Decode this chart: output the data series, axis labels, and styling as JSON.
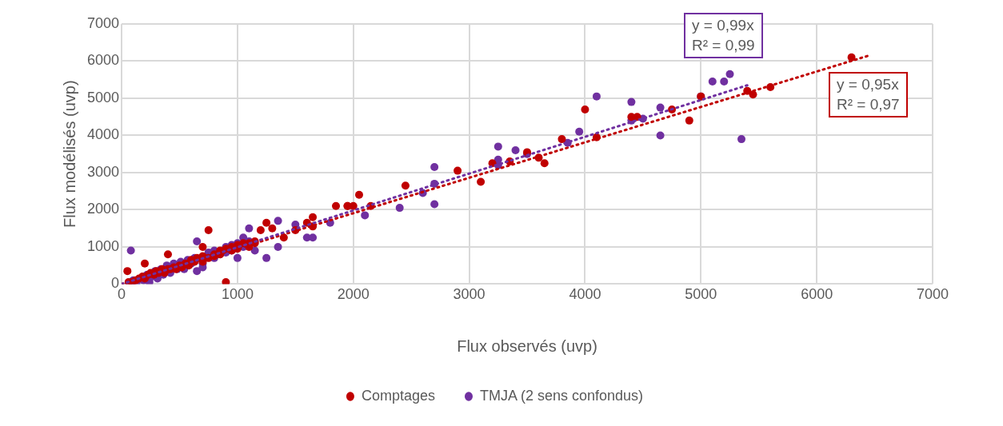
{
  "chart_data": {
    "type": "scatter",
    "xlabel": "Flux observés (uvp)",
    "ylabel": "Flux modélisés (uvp)",
    "xlim": [
      0,
      7000
    ],
    "xticks": [
      0,
      1000,
      2000,
      3000,
      4000,
      5000,
      6000,
      7000
    ],
    "ylim": [
      0,
      7000
    ],
    "yticks": [
      0,
      1000,
      2000,
      3000,
      4000,
      5000,
      6000,
      7000
    ],
    "grid": true,
    "legend": "bottom",
    "marker": "circle",
    "series": [
      {
        "name": "Comptages",
        "color": "#c00000",
        "x": [
          50,
          60,
          90,
          120,
          150,
          180,
          200,
          200,
          230,
          250,
          280,
          300,
          320,
          350,
          370,
          400,
          400,
          420,
          450,
          470,
          500,
          520,
          550,
          580,
          600,
          630,
          650,
          700,
          700,
          700,
          750,
          750,
          800,
          800,
          850,
          850,
          900,
          900,
          950,
          950,
          1000,
          1000,
          1050,
          1100,
          1100,
          1150,
          1150,
          1200,
          1250,
          1300,
          1400,
          1500,
          1600,
          1650,
          1650,
          1850,
          1950,
          1950,
          2000,
          2050,
          2150,
          2450,
          2900,
          3100,
          3200,
          3350,
          3500,
          3600,
          3650,
          3800,
          4000,
          4100,
          4400,
          4450,
          4750,
          4900,
          5000,
          5400,
          5450,
          5600,
          6300
        ],
        "values": [
          350,
          50,
          50,
          100,
          150,
          200,
          150,
          550,
          250,
          300,
          250,
          350,
          300,
          400,
          300,
          800,
          400,
          400,
          450,
          400,
          500,
          450,
          550,
          500,
          650,
          600,
          700,
          600,
          750,
          1000,
          700,
          1450,
          800,
          750,
          900,
          800,
          50,
          950,
          1000,
          900,
          1050,
          950,
          1100,
          1000,
          1100,
          1100,
          1150,
          1450,
          1650,
          1500,
          1250,
          1450,
          1650,
          1800,
          1550,
          2100,
          2100,
          2100,
          2100,
          2400,
          2100,
          2650,
          3050,
          2750,
          3250,
          3300,
          3550,
          3400,
          3250,
          3900,
          4700,
          3950,
          4500,
          4500,
          4700,
          4400,
          5050,
          5200,
          5100,
          5300,
          6100
        ]
      },
      {
        "name": "TMJA (2 sens confondus)",
        "color": "#7030a0",
        "x": [
          70,
          80,
          100,
          130,
          190,
          220,
          240,
          260,
          290,
          310,
          340,
          360,
          390,
          420,
          450,
          480,
          510,
          540,
          570,
          600,
          630,
          650,
          650,
          700,
          700,
          750,
          800,
          800,
          850,
          900,
          900,
          950,
          950,
          1000,
          1000,
          1050,
          1050,
          1100,
          1100,
          1150,
          1250,
          1350,
          1350,
          1500,
          1600,
          1650,
          1800,
          2100,
          2400,
          2600,
          2700,
          2700,
          2700,
          3250,
          3250,
          3250,
          3400,
          3500,
          3850,
          3950,
          4100,
          4400,
          4400,
          4500,
          4650,
          4650,
          5000,
          5100,
          5200,
          5250,
          5350
        ],
        "values": [
          0,
          900,
          100,
          50,
          100,
          250,
          50,
          200,
          350,
          150,
          400,
          250,
          500,
          300,
          550,
          400,
          600,
          400,
          650,
          550,
          700,
          1150,
          350,
          450,
          550,
          850,
          700,
          900,
          800,
          1000,
          850,
          1050,
          900,
          1100,
          700,
          1250,
          1000,
          1150,
          1500,
          900,
          700,
          1000,
          1700,
          1600,
          1250,
          1250,
          1650,
          1850,
          2050,
          2450,
          2150,
          2700,
          3150,
          3200,
          3350,
          3700,
          3600,
          3500,
          3800,
          4100,
          5050,
          4900,
          4400,
          4450,
          4750,
          4000,
          5050,
          5450,
          5450,
          5650,
          3900
        ]
      },
      {
        "type": "line",
        "color": "#7030a0",
        "line_style": "dotted",
        "marker": "none",
        "x": [
          0,
          5400
        ],
        "values": [
          0,
          5350
        ]
      },
      {
        "type": "line",
        "color": "#c00000",
        "line_style": "dotted",
        "marker": "none",
        "x": [
          0,
          6450
        ],
        "values": [
          0,
          6150
        ]
      }
    ],
    "annotations": [
      "y = 0,99x\nR² = 0,99",
      "y = 0,95x\nR² = 0,97"
    ]
  }
}
